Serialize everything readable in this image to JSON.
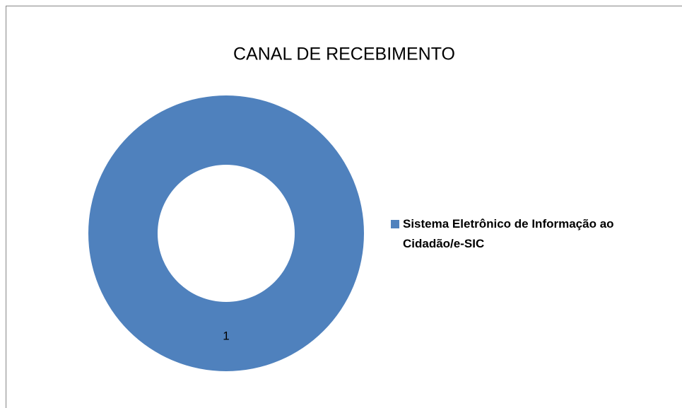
{
  "chart_data": {
    "type": "donut",
    "title": "CANAL DE RECEBIMENTO",
    "categories": [
      "Sistema Eletrônico de Informação ao Cidadão/e-SIC"
    ],
    "values": [
      1
    ],
    "colors": [
      "#4f81bd"
    ],
    "legend": "right"
  }
}
